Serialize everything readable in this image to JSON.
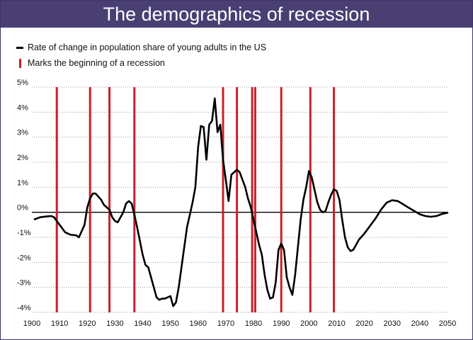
{
  "title": "The demographics of recession",
  "legend": {
    "series_label": "Rate of change in population share of young adults in the US",
    "recession_label": "Marks the beginning of a recession"
  },
  "colors": {
    "title_bg": "#4a3f73",
    "series": "#000000",
    "recession": "#c8202b",
    "grid": "#999999"
  },
  "chart_data": {
    "type": "line",
    "title": "The demographics of recession",
    "xlabel": "",
    "ylabel": "",
    "xlim": [
      1900,
      2050
    ],
    "ylim": [
      -4,
      5
    ],
    "x_ticks": [
      1900,
      1910,
      1920,
      1930,
      1940,
      1950,
      1960,
      1970,
      1980,
      1990,
      2000,
      2010,
      2020,
      2030,
      2040,
      2050
    ],
    "y_ticks": [
      5,
      4,
      3,
      2,
      1,
      0,
      -1,
      -2,
      -3,
      -4
    ],
    "y_tick_labels": [
      "5%",
      "4%",
      "3%",
      "2%",
      "1%",
      "0%",
      "-1%",
      "-2%",
      "-3%",
      "-4%"
    ],
    "grid": "horizontal dotted",
    "legend_position": "top-left",
    "series": [
      {
        "name": "Rate of change in population share of young adults in the US",
        "points": [
          [
            1901,
            -0.28
          ],
          [
            1903,
            -0.2
          ],
          [
            1905,
            -0.17
          ],
          [
            1907,
            -0.15
          ],
          [
            1908,
            -0.2
          ],
          [
            1910,
            -0.5
          ],
          [
            1912,
            -0.8
          ],
          [
            1914,
            -0.9
          ],
          [
            1916,
            -0.92
          ],
          [
            1917,
            -1.0
          ],
          [
            1919,
            -0.5
          ],
          [
            1920,
            0.2
          ],
          [
            1921,
            0.55
          ],
          [
            1922,
            0.75
          ],
          [
            1923,
            0.75
          ],
          [
            1925,
            0.5
          ],
          [
            1926,
            0.3
          ],
          [
            1928,
            0.1
          ],
          [
            1929,
            -0.2
          ],
          [
            1930,
            -0.35
          ],
          [
            1931,
            -0.4
          ],
          [
            1933,
            0.0
          ],
          [
            1934,
            0.35
          ],
          [
            1935,
            0.45
          ],
          [
            1936,
            0.35
          ],
          [
            1937,
            -0.1
          ],
          [
            1938,
            -0.6
          ],
          [
            1940,
            -1.7
          ],
          [
            1941,
            -2.1
          ],
          [
            1942,
            -2.2
          ],
          [
            1943,
            -2.6
          ],
          [
            1945,
            -3.4
          ],
          [
            1946,
            -3.5
          ],
          [
            1947,
            -3.45
          ],
          [
            1948,
            -3.45
          ],
          [
            1950,
            -3.35
          ],
          [
            1951,
            -3.75
          ],
          [
            1952,
            -3.6
          ],
          [
            1953,
            -3.0
          ],
          [
            1954,
            -2.2
          ],
          [
            1955,
            -1.4
          ],
          [
            1956,
            -0.6
          ],
          [
            1957,
            -0.1
          ],
          [
            1958,
            0.4
          ],
          [
            1959,
            1.0
          ],
          [
            1960,
            2.6
          ],
          [
            1961,
            3.45
          ],
          [
            1962,
            3.4
          ],
          [
            1963,
            2.1
          ],
          [
            1964,
            3.5
          ],
          [
            1965,
            3.65
          ],
          [
            1966,
            4.55
          ],
          [
            1967,
            3.2
          ],
          [
            1968,
            3.5
          ],
          [
            1969,
            2.1
          ],
          [
            1970,
            1.3
          ],
          [
            1971,
            0.45
          ],
          [
            1972,
            1.5
          ],
          [
            1973,
            1.6
          ],
          [
            1974,
            1.7
          ],
          [
            1975,
            1.6
          ],
          [
            1976,
            1.3
          ],
          [
            1977,
            1.0
          ],
          [
            1978,
            0.55
          ],
          [
            1979,
            0.2
          ],
          [
            1980,
            -0.3
          ],
          [
            1981,
            -0.8
          ],
          [
            1982,
            -1.3
          ],
          [
            1983,
            -1.7
          ],
          [
            1984,
            -2.5
          ],
          [
            1985,
            -3.1
          ],
          [
            1986,
            -3.45
          ],
          [
            1987,
            -3.4
          ],
          [
            1988,
            -2.8
          ],
          [
            1989,
            -1.5
          ],
          [
            1990,
            -1.25
          ],
          [
            1991,
            -1.5
          ],
          [
            1992,
            -2.6
          ],
          [
            1993,
            -3.0
          ],
          [
            1994,
            -3.3
          ],
          [
            1995,
            -2.5
          ],
          [
            1996,
            -1.4
          ],
          [
            1997,
            -0.3
          ],
          [
            1998,
            0.5
          ],
          [
            1999,
            1.0
          ],
          [
            2000,
            1.65
          ],
          [
            2001,
            1.4
          ],
          [
            2002,
            0.9
          ],
          [
            2003,
            0.4
          ],
          [
            2004,
            0.1
          ],
          [
            2005,
            0.0
          ],
          [
            2006,
            0.05
          ],
          [
            2007,
            0.4
          ],
          [
            2008,
            0.7
          ],
          [
            2009,
            0.92
          ],
          [
            2010,
            0.85
          ],
          [
            2011,
            0.5
          ],
          [
            2012,
            -0.3
          ],
          [
            2013,
            -1.0
          ],
          [
            2014,
            -1.4
          ],
          [
            2015,
            -1.55
          ],
          [
            2016,
            -1.5
          ],
          [
            2017,
            -1.3
          ],
          [
            2018,
            -1.1
          ],
          [
            2020,
            -0.85
          ],
          [
            2022,
            -0.55
          ],
          [
            2024,
            -0.25
          ],
          [
            2026,
            0.1
          ],
          [
            2028,
            0.38
          ],
          [
            2030,
            0.48
          ],
          [
            2032,
            0.45
          ],
          [
            2034,
            0.32
          ],
          [
            2036,
            0.18
          ],
          [
            2038,
            0.05
          ],
          [
            2040,
            -0.08
          ],
          [
            2042,
            -0.15
          ],
          [
            2044,
            -0.18
          ],
          [
            2046,
            -0.15
          ],
          [
            2048,
            -0.07
          ],
          [
            2050,
            -0.02
          ]
        ]
      }
    ],
    "recession_starts": [
      1909,
      1921,
      1928,
      1937,
      1969,
      1974,
      1979.5,
      1980.6,
      1990,
      2000.5,
      2009
    ]
  }
}
